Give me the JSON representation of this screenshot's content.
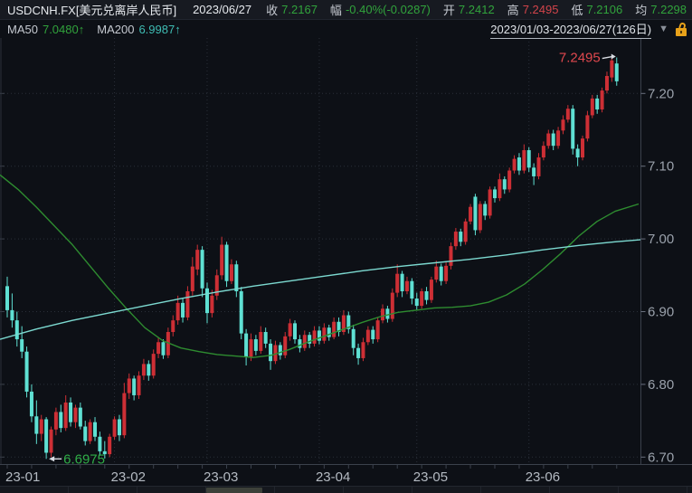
{
  "header": {
    "symbol": "USDCNH.FX[美元兑离岸人民币]",
    "date": "2023/06/27",
    "quote_fields": [
      {
        "label": "收",
        "value": "7.2167",
        "color": "green"
      },
      {
        "label": "幅",
        "value": "-0.40%(-0.0287)",
        "color": "green"
      },
      {
        "label": "开",
        "value": "7.2412",
        "color": "green"
      },
      {
        "label": "高",
        "value": "7.2495",
        "color": "red"
      },
      {
        "label": "低",
        "value": "7.2106",
        "color": "green"
      },
      {
        "label": "均",
        "value": "7.2298",
        "color": "green"
      }
    ]
  },
  "ma_row": {
    "ma50_label": "MA50",
    "ma50_value": "7.0480↑",
    "ma200_label": "MA200",
    "ma200_value": "6.9987↑",
    "range": "2023/01/03-2023/06/27(126日)",
    "dropdown_glyph": "▼",
    "lock_icon": "unlocked-padlock"
  },
  "colors": {
    "background": "#0d1016",
    "header_bg": "#171a21",
    "up_candle": "#cd2f35",
    "down_candle": "#5fe0d3",
    "ma50_line": "#2e8c30",
    "ma200_line": "#7cd9d0",
    "grid": "#2a2f39",
    "axis": "#3b414c",
    "axis_text": "#9aa1ab",
    "month_text": "#b4bac2",
    "text_primary": "#e6e9ed",
    "text_label": "#c6cad1",
    "value_green": "#31a33c",
    "value_red": "#d2444a",
    "value_teal": "#3fbdb4",
    "range_text": "#dfe3e8",
    "lock": "#e8a21a",
    "arrow": "#d9dde3",
    "scroll_track": "#15181e",
    "scroll_thumb": "#3c4039"
  },
  "chart_data": {
    "type": "candlestick",
    "title": "USDCNH.FX daily candles with MA50 and MA200",
    "ylim": [
      6.69,
      7.2725
    ],
    "grid": true,
    "y_ticks": [
      "6.70",
      "6.80",
      "6.90",
      "7.00",
      "7.10",
      "7.20"
    ],
    "x_ticks": [
      {
        "label": "23-01",
        "day": 0
      },
      {
        "label": "23-02",
        "day": 22
      },
      {
        "label": "23-03",
        "day": 41
      },
      {
        "label": "23-04",
        "day": 64
      },
      {
        "label": "23-05",
        "day": 84
      },
      {
        "label": "23-06",
        "day": 107
      }
    ],
    "candles": [
      [
        6.935,
        6.948,
        6.892,
        6.902
      ],
      [
        6.902,
        6.925,
        6.878,
        6.888
      ],
      [
        6.888,
        6.9,
        6.852,
        6.862
      ],
      [
        6.862,
        6.88,
        6.836,
        6.845
      ],
      [
        6.845,
        6.852,
        6.782,
        6.79
      ],
      [
        6.79,
        6.8,
        6.748,
        6.756
      ],
      [
        6.756,
        6.778,
        6.718,
        6.732
      ],
      [
        6.732,
        6.758,
        6.722,
        6.752
      ],
      [
        6.752,
        6.755,
        6.6975,
        6.706
      ],
      [
        6.706,
        6.742,
        6.7,
        6.738
      ],
      [
        6.738,
        6.768,
        6.73,
        6.762
      ],
      [
        6.762,
        6.772,
        6.734,
        6.74
      ],
      [
        6.74,
        6.785,
        6.736,
        6.775
      ],
      [
        6.775,
        6.782,
        6.742,
        6.748
      ],
      [
        6.748,
        6.772,
        6.74,
        6.768
      ],
      [
        6.768,
        6.775,
        6.738,
        6.742
      ],
      [
        6.742,
        6.75,
        6.716,
        6.722
      ],
      [
        6.722,
        6.752,
        6.718,
        6.748
      ],
      [
        6.748,
        6.755,
        6.722,
        6.728
      ],
      [
        6.728,
        6.735,
        6.702,
        6.708
      ],
      [
        6.708,
        6.722,
        6.698,
        6.704
      ],
      [
        6.704,
        6.732,
        6.7,
        6.728
      ],
      [
        6.728,
        6.756,
        6.724,
        6.752
      ],
      [
        6.752,
        6.758,
        6.722,
        6.73
      ],
      [
        6.73,
        6.802,
        6.726,
        6.788
      ],
      [
        6.788,
        6.815,
        6.78,
        6.808
      ],
      [
        6.808,
        6.812,
        6.778,
        6.785
      ],
      [
        6.785,
        6.818,
        6.78,
        6.812
      ],
      [
        6.812,
        6.835,
        6.806,
        6.828
      ],
      [
        6.828,
        6.833,
        6.805,
        6.812
      ],
      [
        6.812,
        6.848,
        6.808,
        6.842
      ],
      [
        6.842,
        6.865,
        6.836,
        6.858
      ],
      [
        6.858,
        6.862,
        6.835,
        6.84
      ],
      [
        6.84,
        6.878,
        6.836,
        6.872
      ],
      [
        6.872,
        6.895,
        6.866,
        6.888
      ],
      [
        6.888,
        6.922,
        6.882,
        6.912
      ],
      [
        6.912,
        6.918,
        6.885,
        6.892
      ],
      [
        6.892,
        6.935,
        6.888,
        6.928
      ],
      [
        6.928,
        6.975,
        6.922,
        6.962
      ],
      [
        6.958,
        6.992,
        6.95,
        6.985
      ],
      [
        6.985,
        6.99,
        6.92,
        6.932
      ],
      [
        6.932,
        6.94,
        6.884,
        6.898
      ],
      [
        6.898,
        6.93,
        6.892,
        6.922
      ],
      [
        6.922,
        6.958,
        6.916,
        6.95
      ],
      [
        6.95,
        7.003,
        6.944,
        6.992
      ],
      [
        6.992,
        6.996,
        6.934,
        6.942
      ],
      [
        6.942,
        6.972,
        6.938,
        6.965
      ],
      [
        6.965,
        6.97,
        6.92,
        6.928
      ],
      [
        6.928,
        6.934,
        6.862,
        6.87
      ],
      [
        6.87,
        6.876,
        6.826,
        6.838
      ],
      [
        6.838,
        6.87,
        6.832,
        6.862
      ],
      [
        6.862,
        6.868,
        6.84,
        6.846
      ],
      [
        6.846,
        6.88,
        6.842,
        6.872
      ],
      [
        6.872,
        6.878,
        6.85,
        6.856
      ],
      [
        6.856,
        6.862,
        6.82,
        6.832
      ],
      [
        6.832,
        6.86,
        6.828,
        6.854
      ],
      [
        6.854,
        6.858,
        6.834,
        6.84
      ],
      [
        6.84,
        6.872,
        6.836,
        6.866
      ],
      [
        6.866,
        6.89,
        6.86,
        6.884
      ],
      [
        6.884,
        6.888,
        6.856,
        6.862
      ],
      [
        6.862,
        6.868,
        6.844,
        6.85
      ],
      [
        6.85,
        6.874,
        6.846,
        6.868
      ],
      [
        6.868,
        6.872,
        6.85,
        6.856
      ],
      [
        6.856,
        6.88,
        6.852,
        6.874
      ],
      [
        6.874,
        6.88,
        6.855,
        6.86
      ],
      [
        6.86,
        6.884,
        6.856,
        6.878
      ],
      [
        6.878,
        6.882,
        6.86,
        6.865
      ],
      [
        6.865,
        6.892,
        6.862,
        6.886
      ],
      [
        6.886,
        6.892,
        6.866,
        6.872
      ],
      [
        6.872,
        6.902,
        6.868,
        6.895
      ],
      [
        6.895,
        6.9,
        6.87,
        6.876
      ],
      [
        6.876,
        6.882,
        6.84,
        6.85
      ],
      [
        6.85,
        6.856,
        6.827,
        6.836
      ],
      [
        6.836,
        6.864,
        6.832,
        6.858
      ],
      [
        6.858,
        6.88,
        6.854,
        6.875
      ],
      [
        6.875,
        6.88,
        6.856,
        6.862
      ],
      [
        6.862,
        6.892,
        6.858,
        6.888
      ],
      [
        6.888,
        6.91,
        6.884,
        6.904
      ],
      [
        6.904,
        6.908,
        6.885,
        6.89
      ],
      [
        6.89,
        6.932,
        6.886,
        6.926
      ],
      [
        6.926,
        6.965,
        6.92,
        6.952
      ],
      [
        6.952,
        6.956,
        6.92,
        6.928
      ],
      [
        6.928,
        6.948,
        6.924,
        6.942
      ],
      [
        6.942,
        6.946,
        6.91,
        6.918
      ],
      [
        6.918,
        6.926,
        6.902,
        6.908
      ],
      [
        6.908,
        6.932,
        6.904,
        6.928
      ],
      [
        6.928,
        6.934,
        6.91,
        6.916
      ],
      [
        6.916,
        6.948,
        6.912,
        6.944
      ],
      [
        6.944,
        6.97,
        6.94,
        6.962
      ],
      [
        6.962,
        6.966,
        6.936,
        6.942
      ],
      [
        6.942,
        6.968,
        6.938,
        6.963
      ],
      [
        6.963,
        6.995,
        6.958,
        6.99
      ],
      [
        6.99,
        7.015,
        6.985,
        7.01
      ],
      [
        7.01,
        7.014,
        6.99,
        6.996
      ],
      [
        6.996,
        7.028,
        6.992,
        7.024
      ],
      [
        7.024,
        7.048,
        7.02,
        7.044
      ],
      [
        7.058,
        7.062,
        7.005,
        7.012
      ],
      [
        7.012,
        7.052,
        7.008,
        7.048
      ],
      [
        7.048,
        7.052,
        7.026,
        7.032
      ],
      [
        7.032,
        7.072,
        7.028,
        7.068
      ],
      [
        7.068,
        7.072,
        7.05,
        7.056
      ],
      [
        7.056,
        7.09,
        7.052,
        7.082
      ],
      [
        7.082,
        7.086,
        7.062,
        7.068
      ],
      [
        7.068,
        7.098,
        7.064,
        7.094
      ],
      [
        7.094,
        7.115,
        7.09,
        7.11
      ],
      [
        7.112,
        7.118,
        7.088,
        7.094
      ],
      [
        7.094,
        7.13,
        7.09,
        7.122
      ],
      [
        7.122,
        7.126,
        7.092,
        7.098
      ],
      [
        7.098,
        7.104,
        7.074,
        7.086
      ],
      [
        7.086,
        7.118,
        7.082,
        7.112
      ],
      [
        7.112,
        7.134,
        7.108,
        7.128
      ],
      [
        7.128,
        7.15,
        7.124,
        7.145
      ],
      [
        7.145,
        7.15,
        7.122,
        7.128
      ],
      [
        7.128,
        7.154,
        7.124,
        7.149
      ],
      [
        7.149,
        7.17,
        7.144,
        7.164
      ],
      [
        7.164,
        7.184,
        7.16,
        7.179
      ],
      [
        7.179,
        7.184,
        7.116,
        7.124
      ],
      [
        7.124,
        7.13,
        7.1,
        7.112
      ],
      [
        7.112,
        7.142,
        7.108,
        7.138
      ],
      [
        7.138,
        7.176,
        7.134,
        7.17
      ],
      [
        7.17,
        7.198,
        7.166,
        7.193
      ],
      [
        7.193,
        7.198,
        7.172,
        7.178
      ],
      [
        7.178,
        7.208,
        7.174,
        7.204
      ],
      [
        7.204,
        7.23,
        7.2,
        7.224
      ],
      [
        7.222,
        7.248,
        7.216,
        7.2454
      ],
      [
        7.2412,
        7.2495,
        7.2106,
        7.2167
      ]
    ],
    "ma50": {
      "name": "MA50",
      "final_value": 7.048,
      "points": [
        [
          0,
          7.088
        ],
        [
          20,
          7.068
        ],
        [
          40,
          7.044
        ],
        [
          60,
          7.018
        ],
        [
          80,
          6.992
        ],
        [
          100,
          6.962
        ],
        [
          120,
          6.932
        ],
        [
          140,
          6.904
        ],
        [
          160,
          6.878
        ],
        [
          180,
          6.86
        ],
        [
          200,
          6.85
        ],
        [
          220,
          6.845
        ],
        [
          240,
          6.841
        ],
        [
          260,
          6.839
        ],
        [
          280,
          6.837
        ],
        [
          300,
          6.84
        ],
        [
          320,
          6.848
        ],
        [
          340,
          6.858
        ],
        [
          360,
          6.867
        ],
        [
          380,
          6.876
        ],
        [
          400,
          6.885
        ],
        [
          420,
          6.893
        ],
        [
          440,
          6.899
        ],
        [
          460,
          6.902
        ],
        [
          480,
          6.905
        ],
        [
          500,
          6.906
        ],
        [
          520,
          6.908
        ],
        [
          540,
          6.913
        ],
        [
          560,
          6.923
        ],
        [
          580,
          6.938
        ],
        [
          600,
          6.958
        ],
        [
          620,
          6.98
        ],
        [
          640,
          7.004
        ],
        [
          660,
          7.024
        ],
        [
          680,
          7.038
        ],
        [
          706,
          7.048
        ]
      ]
    },
    "ma200": {
      "name": "MA200",
      "final_value": 6.9987,
      "points": [
        [
          0,
          6.862
        ],
        [
          40,
          6.876
        ],
        [
          80,
          6.888
        ],
        [
          120,
          6.898
        ],
        [
          160,
          6.908
        ],
        [
          200,
          6.918
        ],
        [
          240,
          6.927
        ],
        [
          280,
          6.935
        ],
        [
          320,
          6.942
        ],
        [
          360,
          6.949
        ],
        [
          400,
          6.956
        ],
        [
          440,
          6.962
        ],
        [
          480,
          6.967
        ],
        [
          520,
          6.972
        ],
        [
          560,
          6.978
        ],
        [
          600,
          6.985
        ],
        [
          640,
          6.991
        ],
        [
          680,
          6.996
        ],
        [
          709,
          6.999
        ]
      ]
    },
    "annotations": [
      {
        "id": "period-high",
        "text": "7.2495",
        "price": 7.2495,
        "day": 125,
        "color": "#e0484e",
        "text_side": "left"
      },
      {
        "id": "period-low",
        "text": "6.6975",
        "price": 6.6975,
        "day": 8,
        "color": "#2fae47",
        "text_side": "right"
      }
    ]
  }
}
